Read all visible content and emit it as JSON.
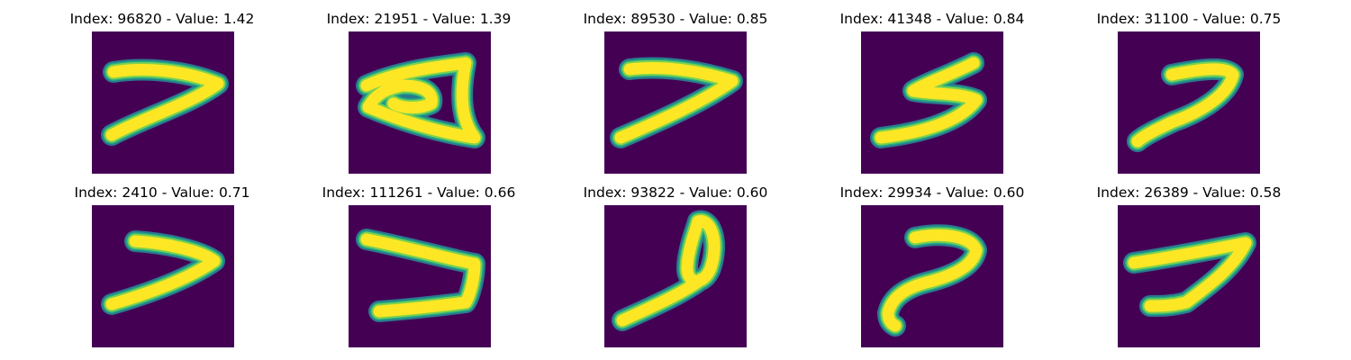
{
  "colors": {
    "background": "#440154",
    "stroke_core": "#fde725",
    "stroke_mid": "#7ad151",
    "stroke_edge": "#22a884",
    "stroke_outer": "#2a788e"
  },
  "panels": [
    {
      "title": "Index: 96820 - Value: 1.42",
      "glyph": "seven-a"
    },
    {
      "title": "Index: 21951 - Value: 1.39",
      "glyph": "a-shape"
    },
    {
      "title": "Index: 89530 - Value: 0.85",
      "glyph": "seven-b"
    },
    {
      "title": "Index: 41348 - Value: 0.84",
      "glyph": "s-shape"
    },
    {
      "title": "Index: 31100 - Value: 0.75",
      "glyph": "seven-c"
    },
    {
      "title": "Index: 2410 - Value: 0.71",
      "glyph": "seven-d"
    },
    {
      "title": "Index: 111261 - Value: 0.66",
      "glyph": "v-shape"
    },
    {
      "title": "Index: 93822 - Value: 0.60",
      "glyph": "loop-shape"
    },
    {
      "title": "Index: 29934 - Value: 0.60",
      "glyph": "hook-shape"
    },
    {
      "title": "Index: 26389 - Value: 0.58",
      "glyph": "seven-e"
    }
  ]
}
